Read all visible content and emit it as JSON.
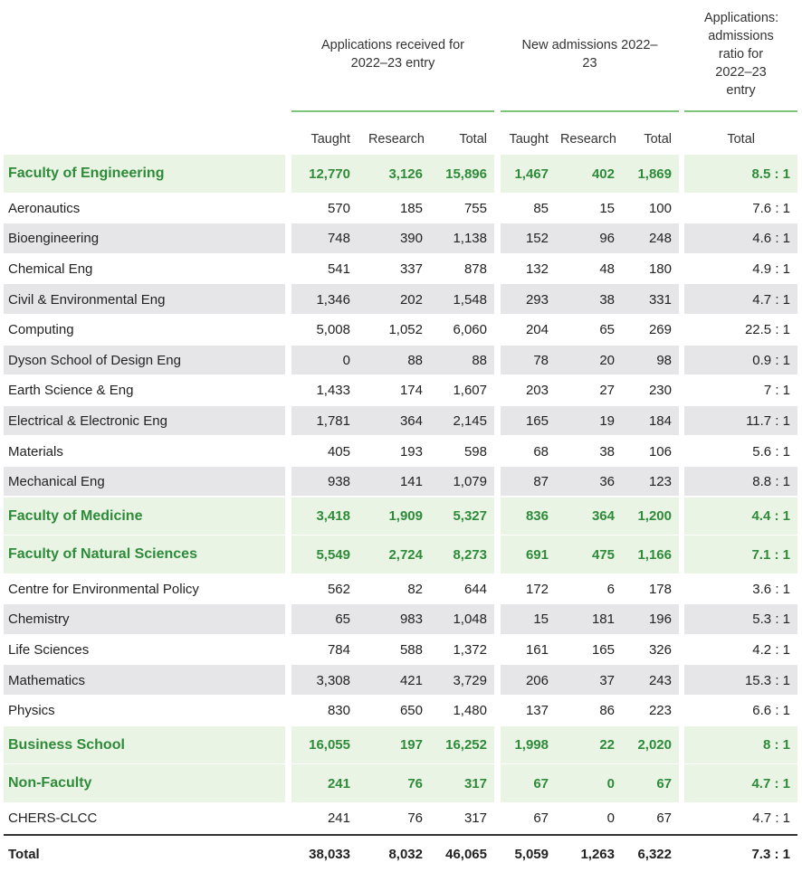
{
  "table": {
    "group_headers": [
      "Applications received for 2022–23 entry",
      "New admissions 2022–23",
      "Applications: admissions ratio for 2022–23 entry"
    ],
    "columns": [
      "Taught",
      "Research",
      "Total",
      "Taught",
      "Research",
      "Total",
      "Total"
    ],
    "sections": [
      {
        "faculty": {
          "label": "Faculty of Engineering",
          "cells": [
            "12,770",
            "3,126",
            "15,896",
            "1,467",
            "402",
            "1,869",
            "8.5 : 1"
          ]
        },
        "departments": [
          {
            "label": "Aeronautics",
            "cells": [
              "570",
              "185",
              "755",
              "85",
              "15",
              "100",
              "7.6 : 1"
            ]
          },
          {
            "label": "Bioengineering",
            "cells": [
              "748",
              "390",
              "1,138",
              "152",
              "96",
              "248",
              "4.6 : 1"
            ]
          },
          {
            "label": "Chemical Eng",
            "cells": [
              "541",
              "337",
              "878",
              "132",
              "48",
              "180",
              "4.9 : 1"
            ]
          },
          {
            "label": "Civil & Environmental Eng",
            "cells": [
              "1,346",
              "202",
              "1,548",
              "293",
              "38",
              "331",
              "4.7 : 1"
            ]
          },
          {
            "label": "Computing",
            "cells": [
              "5,008",
              "1,052",
              "6,060",
              "204",
              "65",
              "269",
              "22.5 : 1"
            ]
          },
          {
            "label": "Dyson School of Design Eng",
            "cells": [
              "0",
              "88",
              "88",
              "78",
              "20",
              "98",
              "0.9 : 1"
            ]
          },
          {
            "label": "Earth Science & Eng",
            "cells": [
              "1,433",
              "174",
              "1,607",
              "203",
              "27",
              "230",
              "7 : 1"
            ]
          },
          {
            "label": "Electrical & Electronic Eng",
            "cells": [
              "1,781",
              "364",
              "2,145",
              "165",
              "19",
              "184",
              "11.7 : 1"
            ]
          },
          {
            "label": "Materials",
            "cells": [
              "405",
              "193",
              "598",
              "68",
              "38",
              "106",
              "5.6 : 1"
            ]
          },
          {
            "label": "Mechanical Eng",
            "cells": [
              "938",
              "141",
              "1,079",
              "87",
              "36",
              "123",
              "8.8 : 1"
            ]
          }
        ]
      },
      {
        "faculty": {
          "label": "Faculty of Medicine",
          "cells": [
            "3,418",
            "1,909",
            "5,327",
            "836",
            "364",
            "1,200",
            "4.4 : 1"
          ]
        },
        "departments": []
      },
      {
        "faculty": {
          "label": "Faculty of Natural Sciences",
          "cells": [
            "5,549",
            "2,724",
            "8,273",
            "691",
            "475",
            "1,166",
            "7.1 : 1"
          ]
        },
        "departments": [
          {
            "label": "Centre for Environmental Policy",
            "cells": [
              "562",
              "82",
              "644",
              "172",
              "6",
              "178",
              "3.6 : 1"
            ]
          },
          {
            "label": "Chemistry",
            "cells": [
              "65",
              "983",
              "1,048",
              "15",
              "181",
              "196",
              "5.3 : 1"
            ]
          },
          {
            "label": "Life Sciences",
            "cells": [
              "784",
              "588",
              "1,372",
              "161",
              "165",
              "326",
              "4.2 : 1"
            ]
          },
          {
            "label": "Mathematics",
            "cells": [
              "3,308",
              "421",
              "3,729",
              "206",
              "37",
              "243",
              "15.3 : 1"
            ]
          },
          {
            "label": "Physics",
            "cells": [
              "830",
              "650",
              "1,480",
              "137",
              "86",
              "223",
              "6.6 : 1"
            ]
          }
        ]
      },
      {
        "faculty": {
          "label": "Business School",
          "cells": [
            "16,055",
            "197",
            "16,252",
            "1,998",
            "22",
            "2,020",
            "8 : 1"
          ]
        },
        "departments": []
      },
      {
        "faculty": {
          "label": "Non-Faculty",
          "cells": [
            "241",
            "76",
            "317",
            "67",
            "0",
            "67",
            "4.7 : 1"
          ]
        },
        "departments": [
          {
            "label": "CHERS-CLCC",
            "cells": [
              "241",
              "76",
              "317",
              "67",
              "0",
              "67",
              "4.7 : 1"
            ]
          }
        ]
      }
    ],
    "total": {
      "label": "Total",
      "cells": [
        "38,033",
        "8,032",
        "46,065",
        "5,059",
        "1,263",
        "6,322",
        "7.3 : 1"
      ]
    }
  }
}
